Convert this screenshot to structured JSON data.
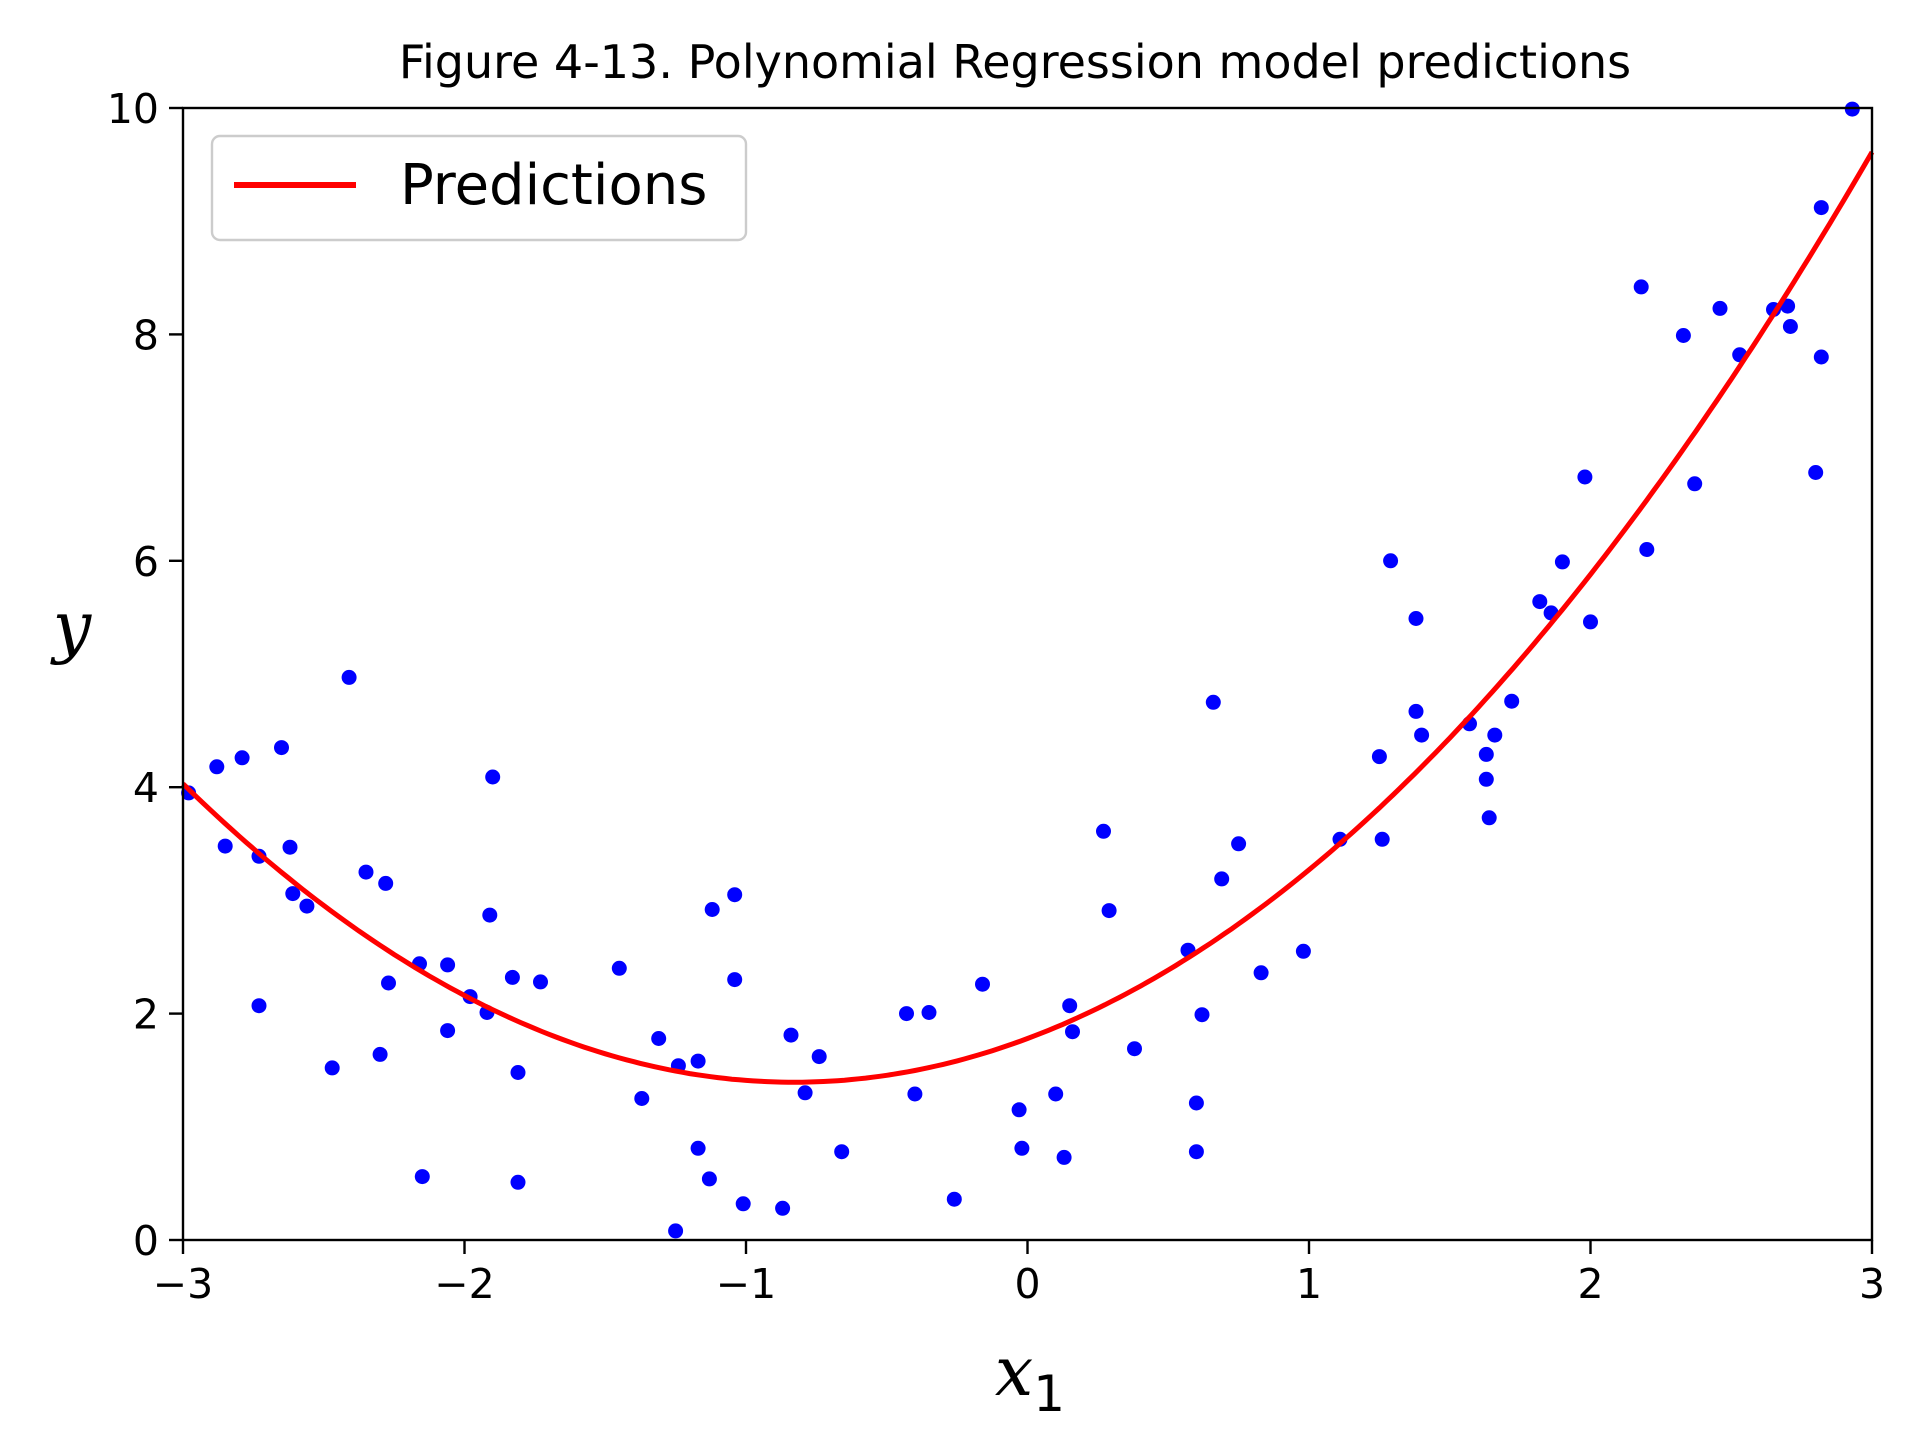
{
  "chart_data": {
    "type": "scatter",
    "title": "Figure 4-13. Polynomial Regression model predictions",
    "xlabel": {
      "base": "x",
      "subscript": "1"
    },
    "ylabel": "y",
    "xlim": [
      -3,
      3
    ],
    "ylim": [
      0,
      10
    ],
    "x_ticks": [
      -3,
      -2,
      -1,
      0,
      1,
      2,
      3
    ],
    "x_tick_labels": [
      "−3",
      "−2",
      "−1",
      "0",
      "1",
      "2",
      "3"
    ],
    "y_ticks": [
      0,
      2,
      4,
      6,
      8,
      10
    ],
    "y_tick_labels": [
      "0",
      "2",
      "4",
      "6",
      "8",
      "10"
    ],
    "grid": false,
    "legend": {
      "placement": "top-left",
      "entries": [
        {
          "label": "Predictions",
          "color": "#ff0000"
        }
      ]
    },
    "colors": {
      "points": "#0000ff",
      "prediction_line": "#ff0000"
    },
    "series": [
      {
        "kind": "scatter",
        "points": [
          [
            -2.98,
            3.95
          ],
          [
            -2.88,
            4.18
          ],
          [
            -2.85,
            3.48
          ],
          [
            -2.79,
            4.26
          ],
          [
            -2.73,
            3.39
          ],
          [
            -2.73,
            2.07
          ],
          [
            -2.65,
            4.35
          ],
          [
            -2.62,
            3.47
          ],
          [
            -2.61,
            3.06
          ],
          [
            -2.56,
            2.95
          ],
          [
            -2.47,
            1.52
          ],
          [
            -2.41,
            4.97
          ],
          [
            -2.35,
            3.25
          ],
          [
            -2.3,
            1.64
          ],
          [
            -2.28,
            3.15
          ],
          [
            -2.27,
            2.27
          ],
          [
            -2.16,
            2.44
          ],
          [
            -2.15,
            0.56
          ],
          [
            -2.06,
            2.43
          ],
          [
            -2.06,
            1.85
          ],
          [
            -1.98,
            2.15
          ],
          [
            -1.92,
            2.01
          ],
          [
            -1.91,
            2.87
          ],
          [
            -1.9,
            4.09
          ],
          [
            -1.83,
            2.32
          ],
          [
            -1.81,
            1.48
          ],
          [
            -1.81,
            0.51
          ],
          [
            -1.73,
            2.28
          ],
          [
            -1.45,
            2.4
          ],
          [
            -1.37,
            1.25
          ],
          [
            -1.31,
            1.78
          ],
          [
            -1.25,
            0.08
          ],
          [
            -1.24,
            1.54
          ],
          [
            -1.17,
            1.58
          ],
          [
            -1.17,
            0.81
          ],
          [
            -1.13,
            0.54
          ],
          [
            -1.12,
            2.92
          ],
          [
            -1.04,
            3.05
          ],
          [
            -1.04,
            2.3
          ],
          [
            -1.01,
            0.32
          ],
          [
            -0.87,
            0.28
          ],
          [
            -0.84,
            1.81
          ],
          [
            -0.79,
            1.3
          ],
          [
            -0.74,
            1.62
          ],
          [
            -0.66,
            0.78
          ],
          [
            -0.43,
            2.0
          ],
          [
            -0.4,
            1.29
          ],
          [
            -0.35,
            2.01
          ],
          [
            -0.26,
            0.36
          ],
          [
            -0.16,
            2.26
          ],
          [
            -0.03,
            1.15
          ],
          [
            -0.02,
            0.81
          ],
          [
            0.1,
            1.29
          ],
          [
            0.13,
            0.73
          ],
          [
            0.15,
            2.07
          ],
          [
            0.16,
            1.84
          ],
          [
            0.27,
            3.61
          ],
          [
            0.29,
            2.91
          ],
          [
            0.38,
            1.69
          ],
          [
            0.57,
            2.56
          ],
          [
            0.6,
            1.21
          ],
          [
            0.6,
            0.78
          ],
          [
            0.62,
            1.99
          ],
          [
            0.66,
            4.75
          ],
          [
            0.69,
            3.19
          ],
          [
            0.75,
            3.5
          ],
          [
            0.83,
            2.36
          ],
          [
            0.98,
            2.55
          ],
          [
            1.11,
            3.54
          ],
          [
            1.25,
            4.27
          ],
          [
            1.26,
            3.54
          ],
          [
            1.29,
            6.0
          ],
          [
            1.38,
            4.67
          ],
          [
            1.38,
            5.49
          ],
          [
            1.4,
            4.46
          ],
          [
            1.57,
            4.56
          ],
          [
            1.63,
            4.29
          ],
          [
            1.63,
            4.07
          ],
          [
            1.64,
            3.73
          ],
          [
            1.66,
            4.46
          ],
          [
            1.72,
            4.76
          ],
          [
            1.82,
            5.64
          ],
          [
            1.86,
            5.54
          ],
          [
            1.9,
            5.99
          ],
          [
            1.98,
            6.74
          ],
          [
            2.0,
            5.46
          ],
          [
            2.18,
            8.42
          ],
          [
            2.2,
            6.1
          ],
          [
            2.33,
            7.99
          ],
          [
            2.37,
            6.68
          ],
          [
            2.46,
            8.23
          ],
          [
            2.53,
            7.82
          ],
          [
            2.65,
            8.22
          ],
          [
            2.7,
            8.25
          ],
          [
            2.71,
            8.07
          ],
          [
            2.8,
            6.78
          ],
          [
            2.82,
            9.12
          ],
          [
            2.82,
            7.8
          ],
          [
            2.93,
            9.99
          ]
        ]
      },
      {
        "kind": "line",
        "name": "Predictions",
        "polynomial": {
          "a": 0.56,
          "b": 0.93,
          "c": 1.78
        }
      }
    ]
  }
}
